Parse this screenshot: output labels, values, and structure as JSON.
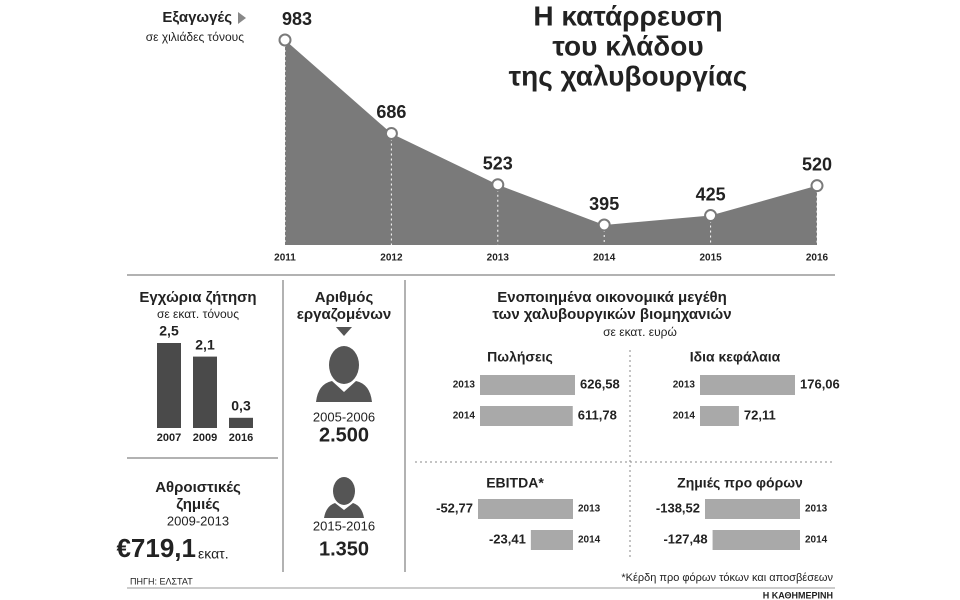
{
  "title": [
    "Η κατάρρευση",
    "του κλάδου",
    "της χαλυβουργίας"
  ],
  "chart_data": [
    {
      "type": "area",
      "ylabel": "Εξαγωγές",
      "subtitle": "σε χιλιάδες τόνους",
      "color": "#7a7a7a",
      "categories": [
        "2011",
        "2012",
        "2013",
        "2014",
        "2015",
        "2016"
      ],
      "values": [
        983,
        686,
        523,
        395,
        425,
        520
      ]
    },
    {
      "type": "bar",
      "title": "Εγχώρια ζήτηση",
      "subtitle": "σε εκατ. τόνους",
      "color": "#4a4a4a",
      "categories": [
        "2007",
        "2009",
        "2016"
      ],
      "values": [
        2.5,
        2.1,
        0.3
      ],
      "value_labels": [
        "2,5",
        "2,1",
        "0,3"
      ]
    },
    {
      "type": "hbar",
      "title": "Πωλήσεις",
      "color": "#a9a9a9",
      "categories": [
        "2013",
        "2014"
      ],
      "values": [
        626.58,
        611.78
      ],
      "value_labels": [
        "626,58",
        "611,78"
      ]
    },
    {
      "type": "hbar",
      "title": "Ιδια κεφάλαια",
      "color": "#a9a9a9",
      "categories": [
        "2013",
        "2014"
      ],
      "values": [
        176.06,
        72.11
      ],
      "value_labels": [
        "176,06",
        "72,11"
      ]
    },
    {
      "type": "hbar",
      "title": "EBITDA*",
      "color": "#a9a9a9",
      "categories": [
        "2013",
        "2014"
      ],
      "values": [
        -52.77,
        -23.41
      ],
      "value_labels": [
        "-52,77",
        "-23,41"
      ]
    },
    {
      "type": "hbar",
      "title": "Ζημιές προ φόρων",
      "color": "#a9a9a9",
      "categories": [
        "2013",
        "2014"
      ],
      "values": [
        -138.52,
        -127.48
      ],
      "value_labels": [
        "-138,52",
        "-127,48"
      ]
    }
  ],
  "financials": {
    "title": [
      "Ενοποιημένα οικονομικά μεγέθη",
      "των χαλυβουργικών βιομηχανιών"
    ],
    "subtitle": "σε εκατ. ευρώ"
  },
  "losses": {
    "title": [
      "Αθροιστικές",
      "ζημιές"
    ],
    "period": "2009-2013",
    "amount": "€719,1",
    "unit": "εκατ."
  },
  "workers": {
    "title": [
      "Αριθμός",
      "εργαζομένων"
    ],
    "items": [
      {
        "period": "2005-2006",
        "count": "2.500"
      },
      {
        "period": "2015-2016",
        "count": "1.350"
      }
    ]
  },
  "source": "ΠΗΓΗ: ΕΛΣΤΑΤ",
  "footnote": "*Κέρδη προ φόρων τόκων και αποσβέσεων",
  "publisher": "Η ΚΑΘΗΜΕΡΙΝΗ"
}
